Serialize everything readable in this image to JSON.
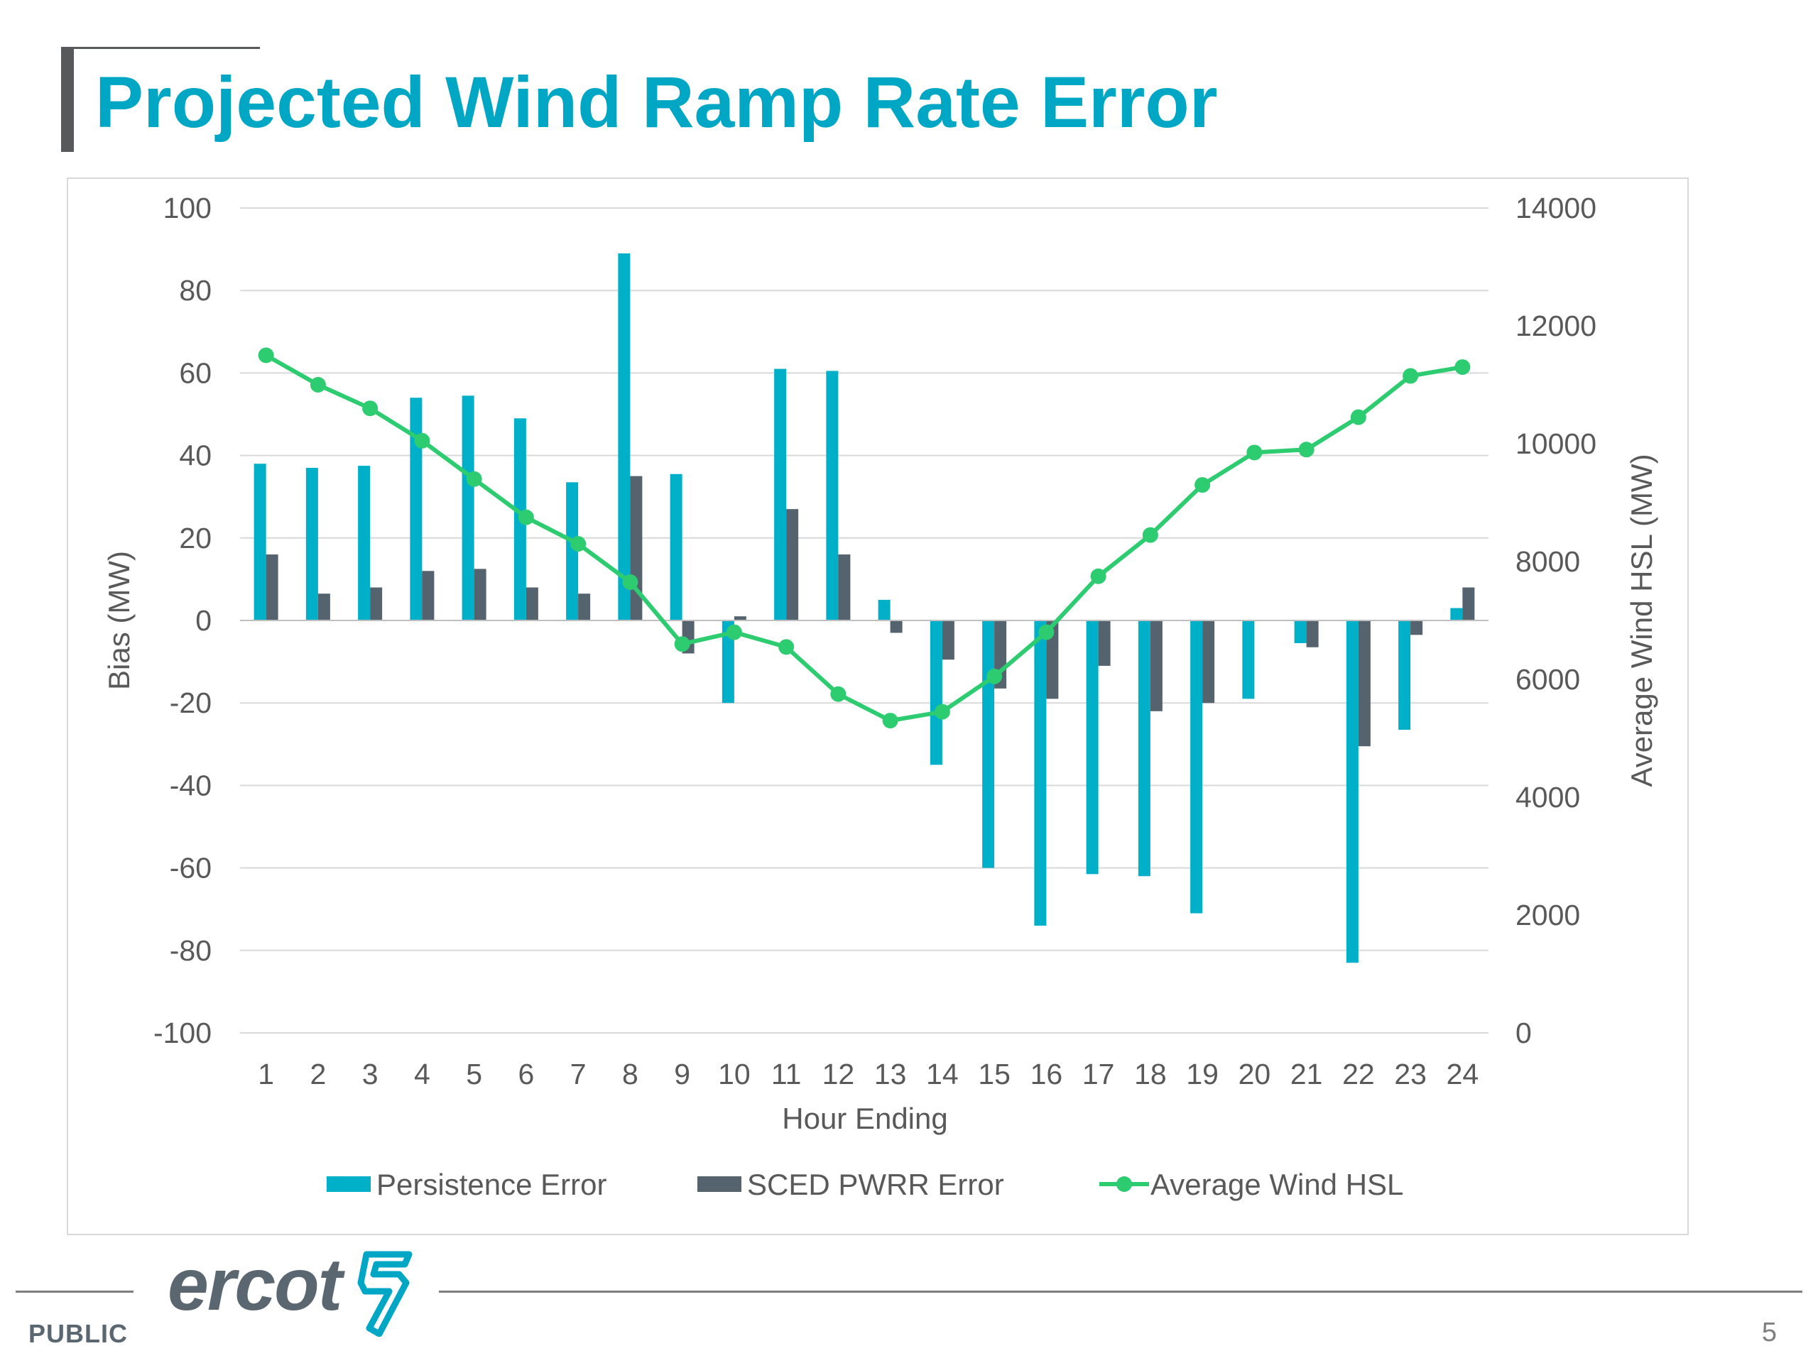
{
  "slide": {
    "title": "Projected Wind Ramp Rate Error",
    "footer_label": "PUBLIC",
    "page_number": "5",
    "logo_text": "ercot"
  },
  "colors": {
    "title": "#00a7c5",
    "persistence": "#00b0c8",
    "sced": "#54636e",
    "hsl": "#2ecc71",
    "grid": "#d9d9d9",
    "axis_text": "#595959"
  },
  "icons": {
    "logo_mark": "ercot-lightning-bolt-icon"
  },
  "chart_data": {
    "type": "bar",
    "xlabel": "Hour Ending",
    "ylabel": "Bias (MW)",
    "y2label": "Average Wind HSL (MW)",
    "ylim": [
      -100,
      100
    ],
    "y2lim": [
      0,
      14000
    ],
    "yticks": [
      "100",
      "80",
      "60",
      "40",
      "20",
      "0",
      "-20",
      "-40",
      "-60",
      "-80",
      "-100"
    ],
    "y2ticks": [
      "14000",
      "12000",
      "10000",
      "8000",
      "6000",
      "4000",
      "2000",
      "0"
    ],
    "categories": [
      "1",
      "2",
      "3",
      "4",
      "5",
      "6",
      "7",
      "8",
      "9",
      "10",
      "11",
      "12",
      "13",
      "14",
      "15",
      "16",
      "17",
      "18",
      "19",
      "20",
      "21",
      "22",
      "23",
      "24"
    ],
    "legend_position": "bottom",
    "grid": true,
    "series": [
      {
        "name": "Persistence Error",
        "type": "bar",
        "axis": "left",
        "values": [
          38,
          37,
          37.5,
          54,
          54.5,
          49,
          33.5,
          89,
          35.5,
          -20,
          61,
          60.5,
          5,
          -35,
          -60,
          -74,
          -61.5,
          -62,
          -71,
          -19,
          -5.5,
          -83,
          -26.5,
          3
        ]
      },
      {
        "name": "SCED PWRR Error",
        "type": "bar",
        "axis": "left",
        "values": [
          16,
          6.5,
          8,
          12,
          12.5,
          8,
          6.5,
          35,
          -8,
          1,
          27,
          16,
          -3,
          -9.5,
          -16.5,
          -19,
          -11,
          -22,
          -20,
          0,
          -6.5,
          -30.5,
          -3.5,
          8
        ]
      },
      {
        "name": "Average Wind HSL",
        "type": "line",
        "axis": "right",
        "values": [
          11500,
          11000,
          10600,
          10050,
          9400,
          8750,
          8300,
          7650,
          6600,
          6800,
          6550,
          5750,
          5300,
          5450,
          6050,
          6800,
          7750,
          8450,
          9300,
          9850,
          9900,
          10450,
          11150,
          11300
        ]
      }
    ]
  }
}
